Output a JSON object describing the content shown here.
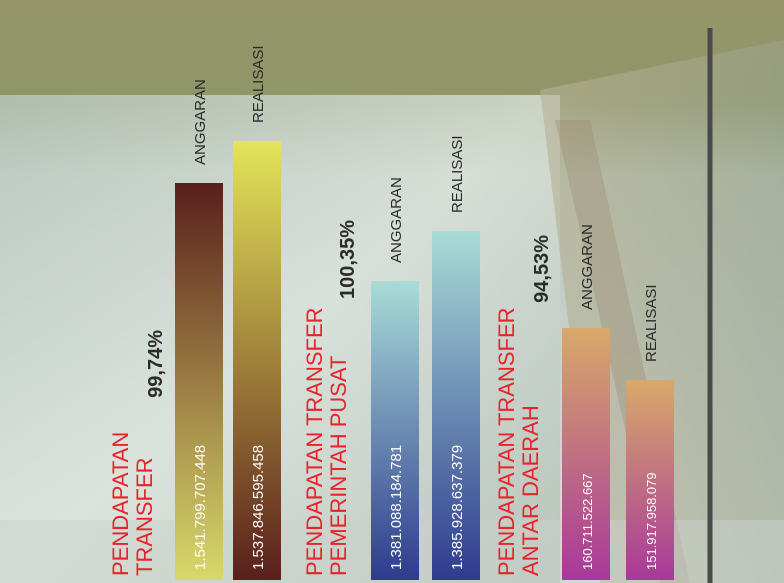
{
  "chart_data": {
    "type": "bar",
    "groups": [
      {
        "title_lines": [
          "PENDAPATAN",
          "TRANSFER"
        ],
        "percent": "99,74%",
        "bars": [
          {
            "label": "ANGGARAN",
            "value": 1541799707448,
            "value_text": "1.541.799.707.448"
          },
          {
            "label": "REALISASI",
            "value": 1537846595458,
            "value_text": "1.537.846.595.458"
          }
        ]
      },
      {
        "title_lines": [
          "PENDAPATAN TRANSFER",
          "PEMERINTAH PUSAT"
        ],
        "percent": "100,35%",
        "bars": [
          {
            "label": "ANGGARAN",
            "value": 1381088184781,
            "value_text": "1.381.088.184.781"
          },
          {
            "label": "REALISASI",
            "value": 1385928637379,
            "value_text": "1.385.928.637.379"
          }
        ]
      },
      {
        "title_lines": [
          "PENDAPATAN TRANSFER",
          "ANTAR DAERAH"
        ],
        "percent": "94,53%",
        "bars": [
          {
            "label": "ANGGARAN",
            "value": 160711522667,
            "value_text": "160.711.522.667"
          },
          {
            "label": "REALISASI",
            "value": 151917958079,
            "value_text": "151.917.958.079"
          }
        ]
      }
    ]
  },
  "colors": {
    "title_red": "#e8232a",
    "percent_dark": "#2b2b2b",
    "bar_label": "#2a2a2a",
    "divider": "#4a4a4a",
    "g1_anggaran": [
      "#5a1f1c",
      "#d9d96a"
    ],
    "g1_realisasi": [
      "#e4e45a",
      "#5a1f1c"
    ],
    "g2_anggaran": [
      "#a9dcd7",
      "#2e3b8f"
    ],
    "g2_realisasi": [
      "#a9dcd7",
      "#2e3b8f"
    ],
    "g3_anggaran": [
      "#d9a96a",
      "#a8389a"
    ],
    "g3_realisasi": [
      "#d9a96a",
      "#a8389a"
    ]
  }
}
